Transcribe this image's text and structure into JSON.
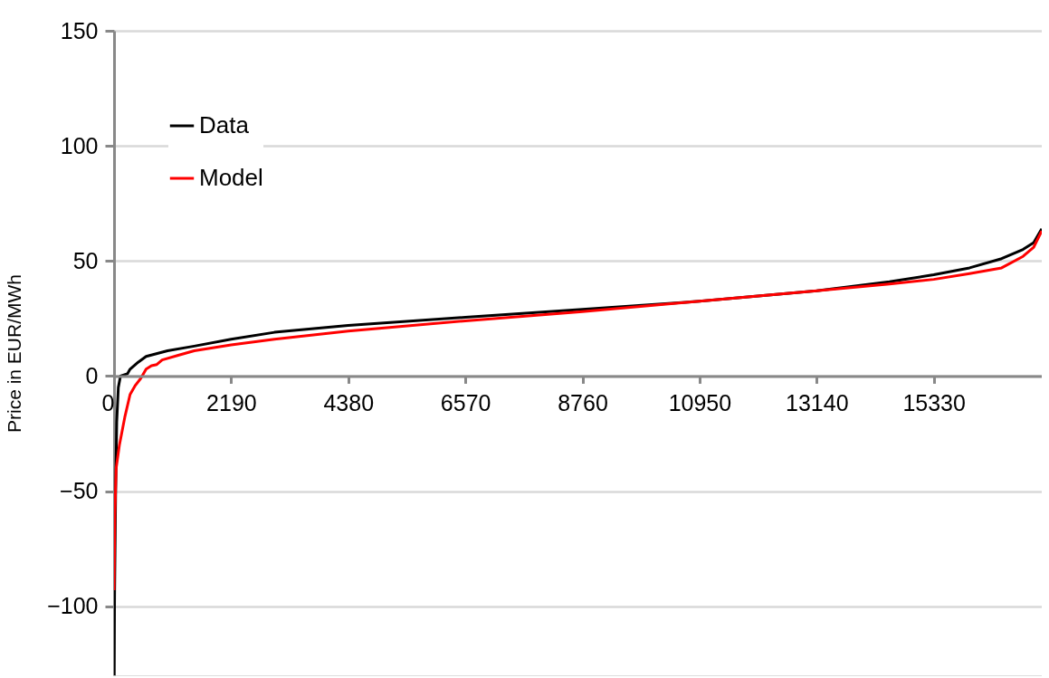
{
  "chart_data": {
    "type": "line",
    "ylabel": "Price in EUR/MWh",
    "xlim": [
      0,
      17350
    ],
    "xticks": [
      0,
      2190,
      4380,
      6570,
      8760,
      10950,
      13140,
      15330
    ],
    "ylim": [
      -130,
      150
    ],
    "yticks": [
      -100,
      -50,
      0,
      50,
      100,
      150
    ],
    "grid": "y",
    "legend": "top left",
    "marker": "none",
    "line_style": "solid",
    "series": [
      {
        "name": "Data",
        "color": "#000000",
        "x": [
          0,
          10,
          30,
          50,
          80,
          120,
          250,
          300,
          450,
          600,
          1000,
          1500,
          2190,
          3000,
          4380,
          6570,
          8760,
          10950,
          13140,
          14500,
          15330,
          16000,
          16600,
          17000,
          17200,
          17350
        ],
        "values": [
          -130,
          -95,
          -50,
          -20,
          -5,
          0,
          1,
          3,
          6,
          8.5,
          11,
          13,
          16,
          19,
          22,
          25.5,
          29,
          32.5,
          37,
          41,
          44,
          47,
          51,
          55,
          58,
          64
        ]
      },
      {
        "name": "Model",
        "color": "#ff0000",
        "x": [
          0,
          15,
          40,
          100,
          200,
          300,
          400,
          500,
          600,
          700,
          800,
          900,
          1200,
          1500,
          2190,
          3000,
          4380,
          6570,
          8760,
          10950,
          13140,
          14500,
          15330,
          16000,
          16600,
          17000,
          17200,
          17350
        ],
        "values": [
          -93,
          -60,
          -40,
          -30,
          -18,
          -8,
          -4,
          -1,
          3,
          4.5,
          5,
          7,
          9,
          11,
          13.5,
          16,
          19.5,
          24,
          28,
          32.5,
          37,
          40,
          42,
          44.5,
          47,
          52,
          56,
          63
        ]
      }
    ]
  }
}
